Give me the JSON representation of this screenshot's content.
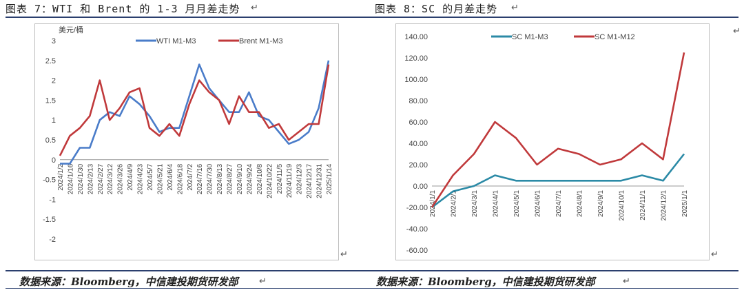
{
  "left": {
    "caption": "图表 7：WTI 和 Brent 的 1-3 月月差走势",
    "source": "数据来源：Bloomberg，中信建投期货研发部",
    "chart": {
      "type": "line",
      "ylabel": "美元/桶",
      "ylim": [
        -2,
        3
      ],
      "yticks": [
        "3",
        "2.5",
        "2",
        "1.5",
        "1",
        "0.5",
        "0",
        "-0.5",
        "-1",
        "-1.5",
        "-2"
      ],
      "categories": [
        "2024/1/2",
        "2024/1/16",
        "2024/1/30",
        "2024/2/13",
        "2024/2/27",
        "2024/3/12",
        "2024/3/26",
        "2024/4/9",
        "2024/4/23",
        "2024/5/7",
        "2024/5/21",
        "2024/6/4",
        "2024/6/18",
        "2024/7/2",
        "2024/7/16",
        "2024/7/30",
        "2024/8/13",
        "2024/8/27",
        "2024/9/10",
        "2024/9/24",
        "2024/10/8",
        "2024/10/22",
        "2024/11/5",
        "2024/11/19",
        "2024/12/3",
        "2024/12/17",
        "2024/12/31",
        "2025/1/14"
      ],
      "series": [
        {
          "name": "WTI M1-M3",
          "color": "#4a7cc9",
          "values": [
            -0.1,
            -0.1,
            0.3,
            0.3,
            1.0,
            1.2,
            1.1,
            1.6,
            1.4,
            1.1,
            0.7,
            0.8,
            0.8,
            1.6,
            2.4,
            1.8,
            1.5,
            1.2,
            1.2,
            1.7,
            1.1,
            1.0,
            0.7,
            0.4,
            0.5,
            0.7,
            1.3,
            2.5
          ]
        },
        {
          "name": "Brent M1-M3",
          "color": "#c0393b",
          "values": [
            0.1,
            0.6,
            0.8,
            1.1,
            2.0,
            1.0,
            1.3,
            1.7,
            1.8,
            0.8,
            0.6,
            0.9,
            0.6,
            1.4,
            2.0,
            1.7,
            1.5,
            0.9,
            1.6,
            1.2,
            1.2,
            0.8,
            0.9,
            0.5,
            0.7,
            0.9,
            0.9,
            2.4
          ]
        }
      ]
    }
  },
  "right": {
    "caption": "图表 8：SC 的月差走势",
    "source": "数据来源：Bloomberg，中信建投期货研发部",
    "chart": {
      "type": "line",
      "ylim": [
        -60,
        140
      ],
      "yticks": [
        "140.00",
        "120.00",
        "100.00",
        "80.00",
        "60.00",
        "40.00",
        "20.00",
        "0.00",
        "-20.00",
        "-40.00",
        "-60.00"
      ],
      "categories": [
        "2024/1/1",
        "2024/2/1",
        "2024/3/1",
        "2024/4/1",
        "2024/5/1",
        "2024/6/1",
        "2024/7/1",
        "2024/8/1",
        "2024/9/1",
        "2024/10/1",
        "2024/11/1",
        "2024/12/1",
        "2025/1/1"
      ],
      "series": [
        {
          "name": "SC M1-M3",
          "color": "#2b8aa6",
          "values": [
            -20,
            -5,
            0,
            10,
            5,
            5,
            5,
            5,
            5,
            5,
            10,
            5,
            30
          ]
        },
        {
          "name": "SC M1-M12",
          "color": "#c0393b",
          "values": [
            -20,
            10,
            30,
            60,
            45,
            20,
            35,
            30,
            20,
            25,
            40,
            25,
            125
          ]
        }
      ]
    }
  },
  "return_mark": "↵"
}
